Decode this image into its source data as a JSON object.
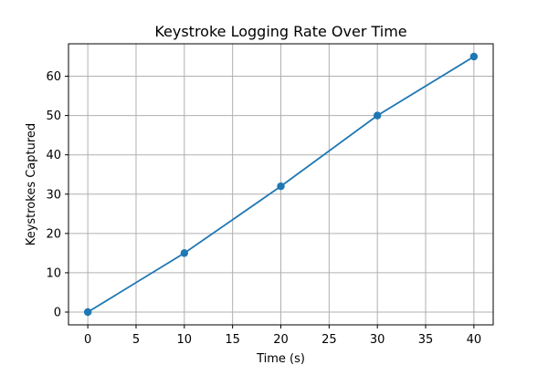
{
  "chart_data": {
    "type": "line",
    "title": "Keystroke Logging Rate Over Time",
    "xlabel": "Time (s)",
    "ylabel": "Keystrokes Captured",
    "x": [
      0,
      10,
      20,
      30,
      40
    ],
    "series": [
      {
        "values": [
          0,
          15,
          32,
          50,
          65
        ],
        "color": "#1f77b4",
        "marker": "circle"
      }
    ],
    "xlim": [
      -2,
      42
    ],
    "ylim": [
      -3.25,
      68.25
    ],
    "xticks": [
      0,
      5,
      10,
      15,
      20,
      25,
      30,
      35,
      40
    ],
    "yticks": [
      0,
      10,
      20,
      30,
      40,
      50,
      60
    ],
    "grid": true,
    "legend": "none"
  }
}
